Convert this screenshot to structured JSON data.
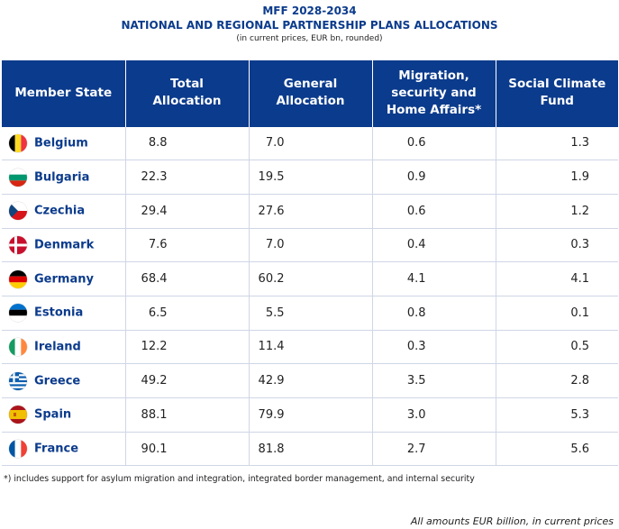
{
  "header": {
    "line1": "MFF 2028-2034",
    "line2": "NATIONAL AND REGIONAL PARTNERSHIP PLANS ALLOCATIONS",
    "line3": "(in current prices, EUR bn, rounded)"
  },
  "columns": {
    "member_state": "Member State",
    "total": [
      "Total",
      "Allocation"
    ],
    "general": [
      "General",
      "Allocation"
    ],
    "migration": [
      "Migration,",
      "security and",
      "Home Affairs*"
    ],
    "climate": [
      "Social Climate",
      "Fund"
    ]
  },
  "rows": [
    {
      "name": "Belgium",
      "flag": "belgium-flag-icon",
      "total": "8.8",
      "general": "7.0",
      "migration": "0.6",
      "climate": "1.3"
    },
    {
      "name": "Bulgaria",
      "flag": "bulgaria-flag-icon",
      "total": "22.3",
      "general": "19.5",
      "migration": "0.9",
      "climate": "1.9"
    },
    {
      "name": "Czechia",
      "flag": "czechia-flag-icon",
      "total": "29.4",
      "general": "27.6",
      "migration": "0.6",
      "climate": "1.2"
    },
    {
      "name": "Denmark",
      "flag": "denmark-flag-icon",
      "total": "7.6",
      "general": "7.0",
      "migration": "0.4",
      "climate": "0.3"
    },
    {
      "name": "Germany",
      "flag": "germany-flag-icon",
      "total": "68.4",
      "general": "60.2",
      "migration": "4.1",
      "climate": "4.1"
    },
    {
      "name": "Estonia",
      "flag": "estonia-flag-icon",
      "total": "6.5",
      "general": "5.5",
      "migration": "0.8",
      "climate": "0.1"
    },
    {
      "name": "Ireland",
      "flag": "ireland-flag-icon",
      "total": "12.2",
      "general": "11.4",
      "migration": "0.3",
      "climate": "0.5"
    },
    {
      "name": "Greece",
      "flag": "greece-flag-icon",
      "total": "49.2",
      "general": "42.9",
      "migration": "3.5",
      "climate": "2.8"
    },
    {
      "name": "Spain",
      "flag": "spain-flag-icon",
      "total": "88.1",
      "general": "79.9",
      "migration": "3.0",
      "climate": "5.3"
    },
    {
      "name": "France",
      "flag": "france-flag-icon",
      "total": "90.1",
      "general": "81.8",
      "migration": "2.7",
      "climate": "5.6"
    }
  ],
  "footnote": "*) includes support for asylum migration and integration, integrated border management, and internal security",
  "note": "All amounts EUR billion, in current prices",
  "colors": {
    "header_blue": "#0b3b8c",
    "grid": "#cfd6e6"
  }
}
